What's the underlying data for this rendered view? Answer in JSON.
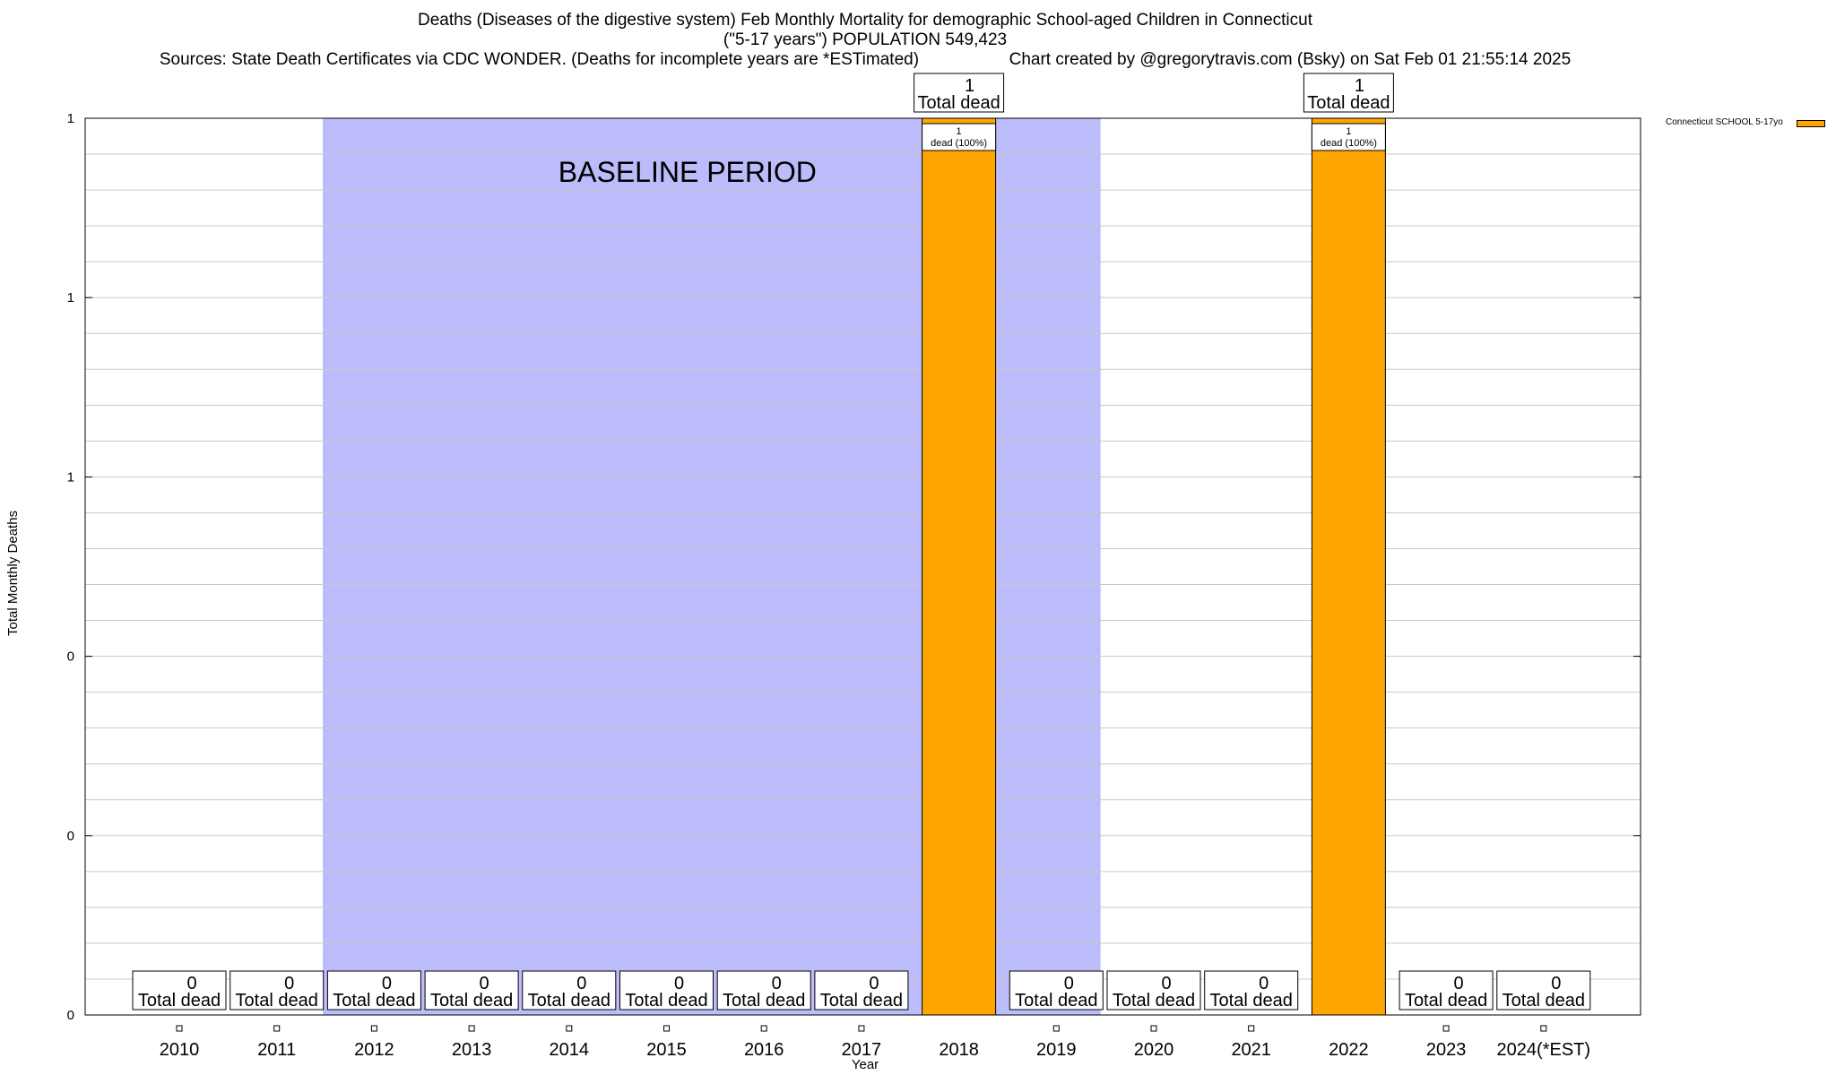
{
  "title": {
    "line1": "Deaths (Diseases of the digestive system) Feb Monthly Mortality for demographic School-aged Children in Connecticut",
    "line2": "(\"5-17 years\") POPULATION 549,423",
    "line3_left": "Sources: State Death Certificates via CDC WONDER. (Deaths for incomplete years are *ESTimated)",
    "line3_right": "Chart created by @gregorytravis.com (Bsky) on Sat Feb 01 21:55:14 2025"
  },
  "colors": {
    "bar": "#ffa500",
    "baseline": "#bcbcfb",
    "grid": "#c8c8c8"
  },
  "chart_data": {
    "type": "bar",
    "categories": [
      "2010",
      "2011",
      "2012",
      "2013",
      "2014",
      "2015",
      "2016",
      "2017",
      "2018",
      "2019",
      "2020",
      "2021",
      "2022",
      "2023",
      "2024(*EST)"
    ],
    "series": [
      {
        "name": "Connecticut SCHOOL 5-17yo",
        "values": [
          0,
          0,
          0,
          0,
          0,
          0,
          0,
          0,
          1,
          0,
          0,
          0,
          1,
          0,
          0
        ]
      }
    ],
    "total_label": "Total dead",
    "inner_label_1": "1",
    "inner_label_2": "dead (100%)",
    "xlabel": "Year",
    "ylabel": "Total Monthly Deaths",
    "ylim": [
      0,
      1
    ],
    "y_tick_labels": [
      "0",
      "0",
      "0",
      "1",
      "1",
      "1"
    ],
    "baseline_annotation": "BASELINE PERIOD",
    "baseline_range": [
      "2012",
      "2019"
    ],
    "grid": true,
    "legend_position": "top-right"
  }
}
